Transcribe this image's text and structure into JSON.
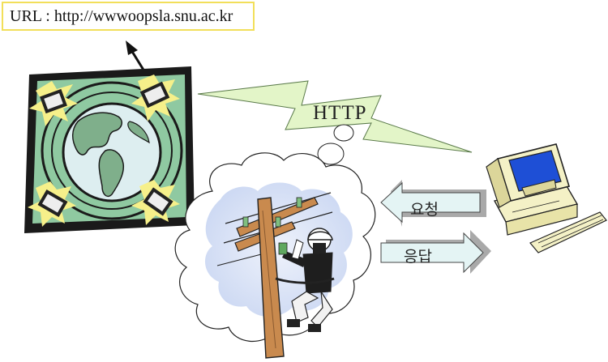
{
  "url_box": {
    "text": "URL : http://wwwoopsla.snu.ac.kr"
  },
  "protocol": {
    "label": "HTTP"
  },
  "request": {
    "label": "요청"
  },
  "response": {
    "label": "응답"
  },
  "colors": {
    "frame_dark": "#1a1a1a",
    "panel_green": "#8fc9a1",
    "ocean": "#ddeef0",
    "land": "#7faf8b",
    "lightning": "#e3f5c8",
    "flash": "#f6f08a",
    "arrow_fill": "#e4f4f4",
    "arrow_shadow": "#a9a9a9",
    "cloud_inner": "#dde6f8",
    "monitor_screen": "#1e4fd6",
    "computer_body": "#f4f1c6",
    "url_border": "#f2df5a"
  },
  "icons": [
    "globe-icon",
    "computer-terminal-icon",
    "lightning-bolt-icon",
    "thought-cloud-icon",
    "lineman-icon",
    "desktop-computer-icon"
  ]
}
